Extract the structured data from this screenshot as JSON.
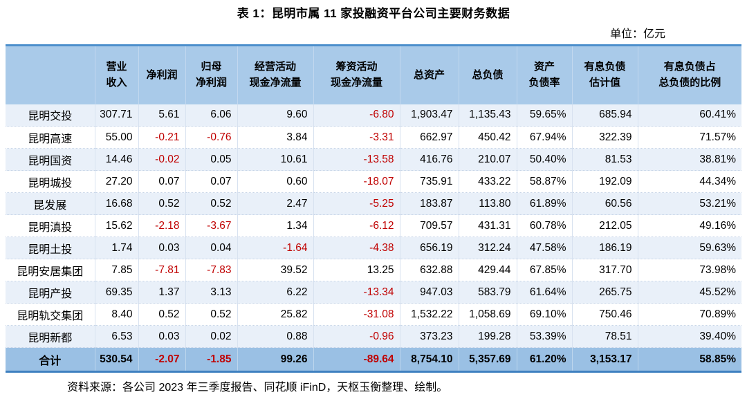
{
  "title": "表 1：昆明市属 11 家投融资平台公司主要财务数据",
  "unit_label": "单位：亿元",
  "source_note": "资料来源：各公司 2023 年三季度报告、同花顺 iFinD，天枢玉衡整理、绘制。",
  "colors": {
    "header_bg": "#a9cae9",
    "total_row_bg": "#9ac0e4",
    "stripe_row_bg": "#e9f0f9",
    "table_top_border": "#4d8fcc",
    "table_bottom_border": "#3e80c0",
    "negative_value": "#c00000",
    "grid_line": "#d8e2f0"
  },
  "chart_data": {
    "type": "table",
    "columns": [
      "",
      "营业\n收入",
      "净利润",
      "归母\n净利润",
      "经营活动\n现金净流量",
      "筹资活动\n现金净流量",
      "总资产",
      "总负债",
      "资产\n负债率",
      "有息负债\n估计值",
      "有息负债占\n总负债的比例"
    ],
    "rows": [
      {
        "name": "昆明交投",
        "values": [
          "307.71",
          "5.61",
          "6.06",
          "9.60",
          "-6.80",
          "1,903.47",
          "1,135.43",
          "59.65%",
          "685.94",
          "60.41%"
        ]
      },
      {
        "name": "昆明高速",
        "values": [
          "55.00",
          "-0.21",
          "-0.76",
          "3.84",
          "-3.31",
          "662.97",
          "450.42",
          "67.94%",
          "322.39",
          "71.57%"
        ]
      },
      {
        "name": "昆明国资",
        "values": [
          "14.46",
          "-0.02",
          "0.05",
          "10.61",
          "-13.58",
          "416.76",
          "210.07",
          "50.40%",
          "81.53",
          "38.81%"
        ]
      },
      {
        "name": "昆明城投",
        "values": [
          "27.20",
          "0.07",
          "0.07",
          "0.60",
          "-18.07",
          "735.91",
          "433.22",
          "58.87%",
          "192.09",
          "44.34%"
        ]
      },
      {
        "name": "昆发展",
        "values": [
          "16.68",
          "0.52",
          "0.52",
          "2.47",
          "-5.25",
          "183.87",
          "113.80",
          "61.89%",
          "60.56",
          "53.21%"
        ]
      },
      {
        "name": "昆明滇投",
        "values": [
          "15.62",
          "-2.18",
          "-3.67",
          "1.34",
          "-6.12",
          "709.57",
          "431.31",
          "60.78%",
          "212.05",
          "49.16%"
        ]
      },
      {
        "name": "昆明土投",
        "values": [
          "1.74",
          "0.03",
          "0.04",
          "-1.64",
          "-4.38",
          "656.19",
          "312.24",
          "47.58%",
          "186.19",
          "59.63%"
        ]
      },
      {
        "name": "昆明安居集团",
        "values": [
          "7.85",
          "-7.81",
          "-7.83",
          "39.52",
          "13.25",
          "632.88",
          "429.44",
          "67.85%",
          "317.70",
          "73.98%"
        ]
      },
      {
        "name": "昆明产投",
        "values": [
          "69.35",
          "1.37",
          "3.13",
          "6.22",
          "-13.34",
          "947.03",
          "583.79",
          "61.64%",
          "265.75",
          "45.52%"
        ]
      },
      {
        "name": "昆明轨交集团",
        "values": [
          "8.40",
          "0.52",
          "0.52",
          "25.82",
          "-31.08",
          "1,532.22",
          "1,058.69",
          "69.10%",
          "750.46",
          "70.89%"
        ]
      },
      {
        "name": "昆明新都",
        "values": [
          "6.53",
          "0.03",
          "0.02",
          "0.88",
          "-0.96",
          "373.23",
          "199.28",
          "53.39%",
          "78.51",
          "39.40%"
        ]
      }
    ],
    "total_row": {
      "name": "合计",
      "values": [
        "530.54",
        "-2.07",
        "-1.85",
        "99.26",
        "-89.64",
        "8,754.10",
        "5,357.69",
        "61.20%",
        "3,153.17",
        "58.85%"
      ]
    }
  }
}
